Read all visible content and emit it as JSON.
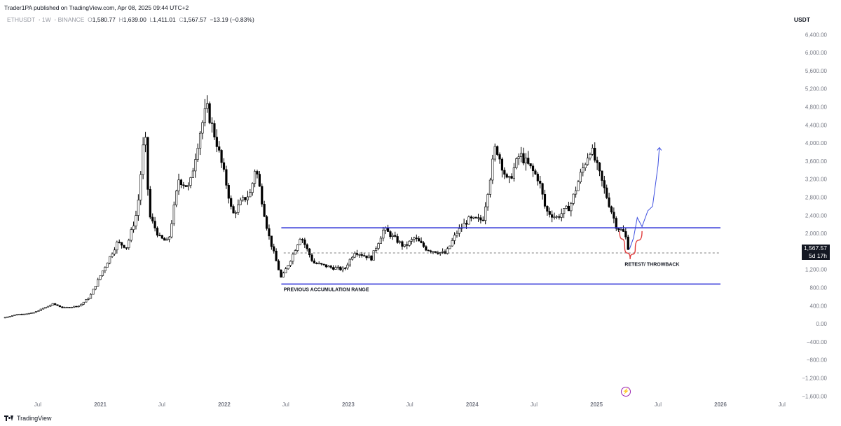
{
  "header": {
    "publisher_line": "Trader1PA published on TradingView.com, Apr 08, 2025 09:44 UTC+2",
    "symbol": "ETHUSDT",
    "interval": "1W",
    "exchange": "BINANCE",
    "open_label": "O",
    "open": "1,580.77",
    "high_label": "H",
    "high": "1,639.00",
    "low_label": "L",
    "low": "1,411.01",
    "close_label": "C",
    "close": "1,567.57",
    "change": "−13.19 (−0.83%)",
    "quote_currency": "USDT"
  },
  "price_tag": {
    "price": "1,567.57",
    "countdown": "5d 17h"
  },
  "footer": {
    "brand": "TradingView"
  },
  "colors": {
    "candle": "#000000",
    "range_line": "#2a2ed6",
    "throwback_curve": "#e03b3b",
    "projection": "#3d4fe0",
    "dashed": "#555555",
    "axis_text": "#787b86"
  },
  "chart_data": {
    "type": "candlestick",
    "symbol": "ETHUSDT",
    "y_tick_labels": [
      "6,400.00",
      "6,000.00",
      "5,600.00",
      "5,200.00",
      "4,800.00",
      "4,400.00",
      "4,000.00",
      "3,600.00",
      "3,200.00",
      "2,800.00",
      "2,400.00",
      "2,000.00",
      "1,600.00",
      "1,200.00",
      "800.00",
      "400.00",
      "0.00",
      "−400.00",
      "−800.00",
      "−1,200.00",
      "−1,600.00"
    ],
    "y_ticks": [
      6400,
      6000,
      5600,
      5200,
      4800,
      4400,
      4000,
      3600,
      3200,
      2800,
      2400,
      2000,
      1600,
      1200,
      800,
      400,
      0,
      -400,
      -800,
      -1200,
      -1600
    ],
    "ylim": [
      -1750,
      6700
    ],
    "x_tick_labels": [
      "Jul",
      "2021",
      "Jul",
      "2022",
      "Jul",
      "2023",
      "Jul",
      "2024",
      "Jul",
      "2025",
      "Jul",
      "2026",
      "Jul"
    ],
    "x_ticks": [
      "2020-07-01",
      "2021-01-01",
      "2021-07-01",
      "2022-01-01",
      "2022-07-01",
      "2023-01-01",
      "2023-07-01",
      "2024-01-01",
      "2024-07-01",
      "2025-01-01",
      "2025-07-01",
      "2026-01-01",
      "2026-07-01"
    ],
    "xlim": [
      "2020-03-20",
      "2026-08-20"
    ],
    "price_path": [
      [
        "2020-03-20",
        130
      ],
      [
        "2020-05-01",
        210
      ],
      [
        "2020-06-15",
        235
      ],
      [
        "2020-08-15",
        440
      ],
      [
        "2020-09-15",
        350
      ],
      [
        "2020-11-01",
        400
      ],
      [
        "2020-12-01",
        600
      ],
      [
        "2021-01-10",
        1200
      ],
      [
        "2021-02-20",
        1800
      ],
      [
        "2021-03-20",
        1700
      ],
      [
        "2021-04-20",
        2500
      ],
      [
        "2021-05-12",
        4300
      ],
      [
        "2021-05-25",
        2400
      ],
      [
        "2021-06-25",
        1900
      ],
      [
        "2021-07-20",
        1800
      ],
      [
        "2021-08-20",
        3200
      ],
      [
        "2021-09-20",
        3000
      ],
      [
        "2021-10-20",
        4200
      ],
      [
        "2021-11-10",
        4800
      ],
      [
        "2021-12-10",
        4000
      ],
      [
        "2022-01-10",
        3000
      ],
      [
        "2022-01-25",
        2400
      ],
      [
        "2022-02-20",
        2700
      ],
      [
        "2022-03-20",
        2900
      ],
      [
        "2022-04-03",
        3500
      ],
      [
        "2022-05-10",
        2000
      ],
      [
        "2022-06-18",
        1000
      ],
      [
        "2022-07-20",
        1500
      ],
      [
        "2022-08-14",
        1950
      ],
      [
        "2022-09-20",
        1350
      ],
      [
        "2022-11-10",
        1250
      ],
      [
        "2022-12-20",
        1200
      ],
      [
        "2023-01-20",
        1600
      ],
      [
        "2023-03-10",
        1450
      ],
      [
        "2023-04-16",
        2100
      ],
      [
        "2023-06-15",
        1700
      ],
      [
        "2023-07-15",
        1900
      ],
      [
        "2023-08-20",
        1650
      ],
      [
        "2023-10-15",
        1550
      ],
      [
        "2023-11-15",
        2000
      ],
      [
        "2023-12-20",
        2300
      ],
      [
        "2024-02-01",
        2300
      ],
      [
        "2024-03-10",
        3950
      ],
      [
        "2024-04-15",
        3100
      ],
      [
        "2024-05-20",
        3750
      ],
      [
        "2024-06-20",
        3450
      ],
      [
        "2024-07-15",
        3200
      ],
      [
        "2024-08-05",
        2500
      ],
      [
        "2024-09-05",
        2350
      ],
      [
        "2024-10-15",
        2600
      ],
      [
        "2024-11-15",
        3300
      ],
      [
        "2024-12-15",
        3900
      ],
      [
        "2025-01-10",
        3300
      ],
      [
        "2025-02-05",
        2700
      ],
      [
        "2025-03-01",
        2150
      ],
      [
        "2025-03-25",
        2000
      ],
      [
        "2025-04-08",
        1567.57
      ]
    ],
    "levels": [
      {
        "name": "range_top",
        "price": 2125,
        "from": "2022-06-18",
        "to": "2026-01-01",
        "style": "solid"
      },
      {
        "name": "range_bottom",
        "price": 880,
        "from": "2022-06-18",
        "to": "2026-01-01",
        "style": "solid"
      },
      {
        "name": "last_price",
        "price": 1567.57,
        "from": "2022-06-25",
        "to": "2026-01-01",
        "style": "dashed"
      }
    ],
    "throwback_curve": [
      [
        "2025-03-10",
        2050
      ],
      [
        "2025-03-25",
        1700
      ],
      [
        "2025-04-10",
        1430
      ],
      [
        "2025-04-25",
        1650
      ],
      [
        "2025-05-15",
        2050
      ]
    ],
    "projection_path": [
      [
        "2025-04-08",
        1650
      ],
      [
        "2025-04-20",
        1900
      ],
      [
        "2025-05-01",
        2350
      ],
      [
        "2025-05-15",
        2150
      ],
      [
        "2025-06-01",
        2500
      ],
      [
        "2025-06-15",
        2600
      ],
      [
        "2025-07-01",
        3500
      ],
      [
        "2025-07-05",
        3900
      ]
    ],
    "annotations": [
      {
        "text": "PREVIOUS ACCUMULATION RANGE",
        "date": "2022-06-25",
        "price": 720
      },
      {
        "text": "RETEST/ THROWBACK",
        "date": "2025-03-25",
        "price": 1280
      }
    ]
  }
}
